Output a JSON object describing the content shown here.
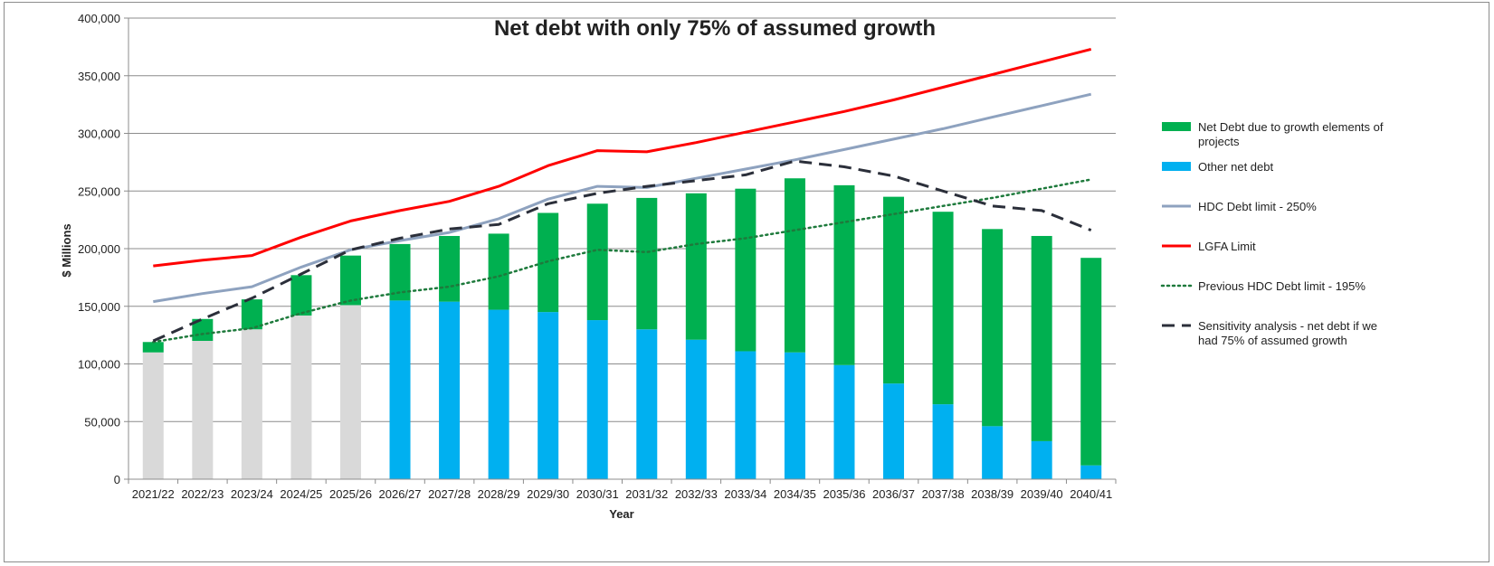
{
  "chart_data": {
    "type": "bar",
    "title": "Net debt with only 75% of assumed growth",
    "xlabel": "Year",
    "ylabel": "$ Millions",
    "ylim": [
      0,
      400000
    ],
    "y_ticks": [
      0,
      50000,
      100000,
      150000,
      200000,
      250000,
      300000,
      350000,
      400000
    ],
    "y_tick_labels": [
      "0",
      "50,000",
      "100,000",
      "150,000",
      "200,000",
      "250,000",
      "300,000",
      "350,000",
      "400,000"
    ],
    "grid": true,
    "legend_position": "right",
    "categories": [
      "2021/22",
      "2022/23",
      "2023/24",
      "2024/25",
      "2025/26",
      "2026/27",
      "2027/28",
      "2028/29",
      "2029/30",
      "2030/31",
      "2031/32",
      "2032/33",
      "2033/34",
      "2034/35",
      "2035/36",
      "2036/37",
      "2037/38",
      "2038/39",
      "2039/40",
      "2040/41"
    ],
    "historical_count": 5,
    "historical_color": "#d9d9d9",
    "bar_series": [
      {
        "name": "Other net debt",
        "color": "#00b0f0",
        "values": [
          110000,
          120000,
          130000,
          142000,
          151000,
          155000,
          154000,
          147000,
          145000,
          138000,
          130000,
          121000,
          111000,
          110000,
          99000,
          83000,
          65000,
          46000,
          33000,
          12000
        ]
      },
      {
        "name": "Net Debt due to growth elements of projects",
        "color": "#00b050",
        "values": [
          9000,
          19000,
          26000,
          35000,
          43000,
          49000,
          57000,
          66000,
          86000,
          101000,
          114000,
          127000,
          141000,
          151000,
          156000,
          162000,
          167000,
          171000,
          178000,
          180000
        ]
      }
    ],
    "line_series": [
      {
        "name": "HDC Debt limit  - 250%",
        "color": "#8ea2bf",
        "style": "solid",
        "values": [
          154000,
          161000,
          167000,
          184000,
          199000,
          207000,
          214000,
          226000,
          243000,
          254000,
          253000,
          261000,
          269000,
          277000,
          286000,
          295000,
          304000,
          314000,
          324000,
          334000
        ]
      },
      {
        "name": "LGFA Limit",
        "color": "#ff0000",
        "style": "solid",
        "values": [
          185000,
          190000,
          194000,
          210000,
          224000,
          233000,
          241000,
          254000,
          272000,
          285000,
          284000,
          292000,
          301000,
          310000,
          319000,
          329000,
          340000,
          351000,
          362000,
          373000
        ]
      },
      {
        "name": "Previous HDC Debt limit - 195%",
        "color": "#1e7a3c",
        "style": "dotted",
        "values": [
          119000,
          126000,
          131000,
          144000,
          155000,
          162000,
          167000,
          176000,
          189000,
          199000,
          197000,
          204000,
          209000,
          216000,
          223000,
          230000,
          237000,
          244000,
          252000,
          260000
        ]
      },
      {
        "name": "Sensitivity analysis - net debt if we had 75% of assumed growth",
        "color": "#2b2f3a",
        "style": "dashed",
        "values": [
          120000,
          139000,
          157000,
          178000,
          199000,
          209000,
          217000,
          221000,
          239000,
          248000,
          254000,
          259000,
          264000,
          276000,
          271000,
          263000,
          250000,
          237000,
          233000,
          216000
        ]
      }
    ],
    "legend": [
      {
        "label_lines": [
          "Net Debt due to growth elements of",
          "projects"
        ],
        "color": "#00b050",
        "kind": "bar"
      },
      {
        "label_lines": [
          "Other net debt"
        ],
        "color": "#00b0f0",
        "kind": "bar"
      },
      {
        "label_lines": [
          "HDC Debt limit  - 250%"
        ],
        "color": "#8ea2bf",
        "kind": "solid"
      },
      {
        "label_lines": [
          "LGFA Limit"
        ],
        "color": "#ff0000",
        "kind": "solid"
      },
      {
        "label_lines": [
          "Previous HDC Debt limit - 195%"
        ],
        "color": "#1e7a3c",
        "kind": "dotted"
      },
      {
        "label_lines": [
          "Sensitivity analysis - net debt if we",
          "had 75% of assumed growth"
        ],
        "color": "#2b2f3a",
        "kind": "dashed"
      }
    ]
  }
}
